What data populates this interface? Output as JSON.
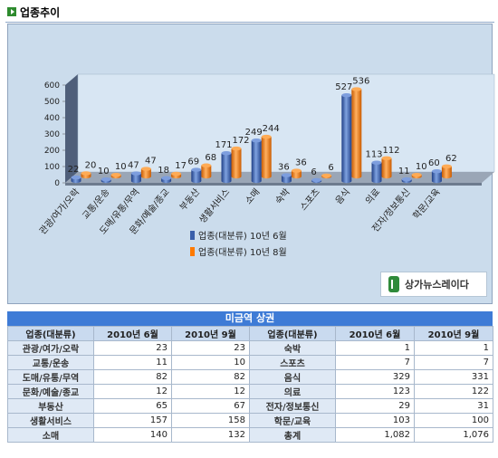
{
  "section_title": "업종추이",
  "watermark_text": "상가뉴스레이다",
  "colors": {
    "blue": "#3a5faa",
    "orange": "#ff7a00",
    "table_header": "#3e7bd6"
  },
  "chart_data": {
    "type": "bar",
    "categories": [
      "관광/여가/오락",
      "교통/운송",
      "도매/유통/무역",
      "문화/예술/종교",
      "부동산",
      "생활서비스",
      "소매",
      "숙박",
      "스포츠",
      "음식",
      "의료",
      "전자/정보통신",
      "학문/교육"
    ],
    "series": [
      {
        "name": "업종(대분류) 10년 6월",
        "values": [
          22,
          10,
          47,
          18,
          69,
          171,
          249,
          36,
          6,
          527,
          113,
          11,
          60
        ]
      },
      {
        "name": "업종(대분류) 10년 8월",
        "values": [
          20,
          10,
          47,
          17,
          68,
          172,
          244,
          36,
          6,
          536,
          112,
          10,
          62
        ]
      }
    ],
    "y_ticks": [
      "0",
      "100",
      "200",
      "300",
      "400",
      "500",
      "600"
    ],
    "ylim": [
      0,
      600
    ],
    "legend_position": "bottom-right"
  },
  "table": {
    "title": "미금역 상권",
    "headers": [
      "업종(대분류)",
      "2010년 6월",
      "2010년 9월",
      "업종(대분류)",
      "2010년 6월",
      "2010년 9월"
    ],
    "rows": [
      [
        "관광/여가/오락",
        "23",
        "23",
        "숙박",
        "1",
        "1"
      ],
      [
        "교통/운송",
        "11",
        "10",
        "스포츠",
        "7",
        "7"
      ],
      [
        "도매/유통/무역",
        "82",
        "82",
        "음식",
        "329",
        "331"
      ],
      [
        "문화/예술/종교",
        "12",
        "12",
        "의료",
        "123",
        "122"
      ],
      [
        "부동산",
        "65",
        "67",
        "전자/정보통신",
        "29",
        "31"
      ],
      [
        "생활서비스",
        "157",
        "158",
        "학문/교육",
        "103",
        "100"
      ],
      [
        "소매",
        "140",
        "132",
        "총계",
        "1,082",
        "1,076"
      ]
    ]
  }
}
